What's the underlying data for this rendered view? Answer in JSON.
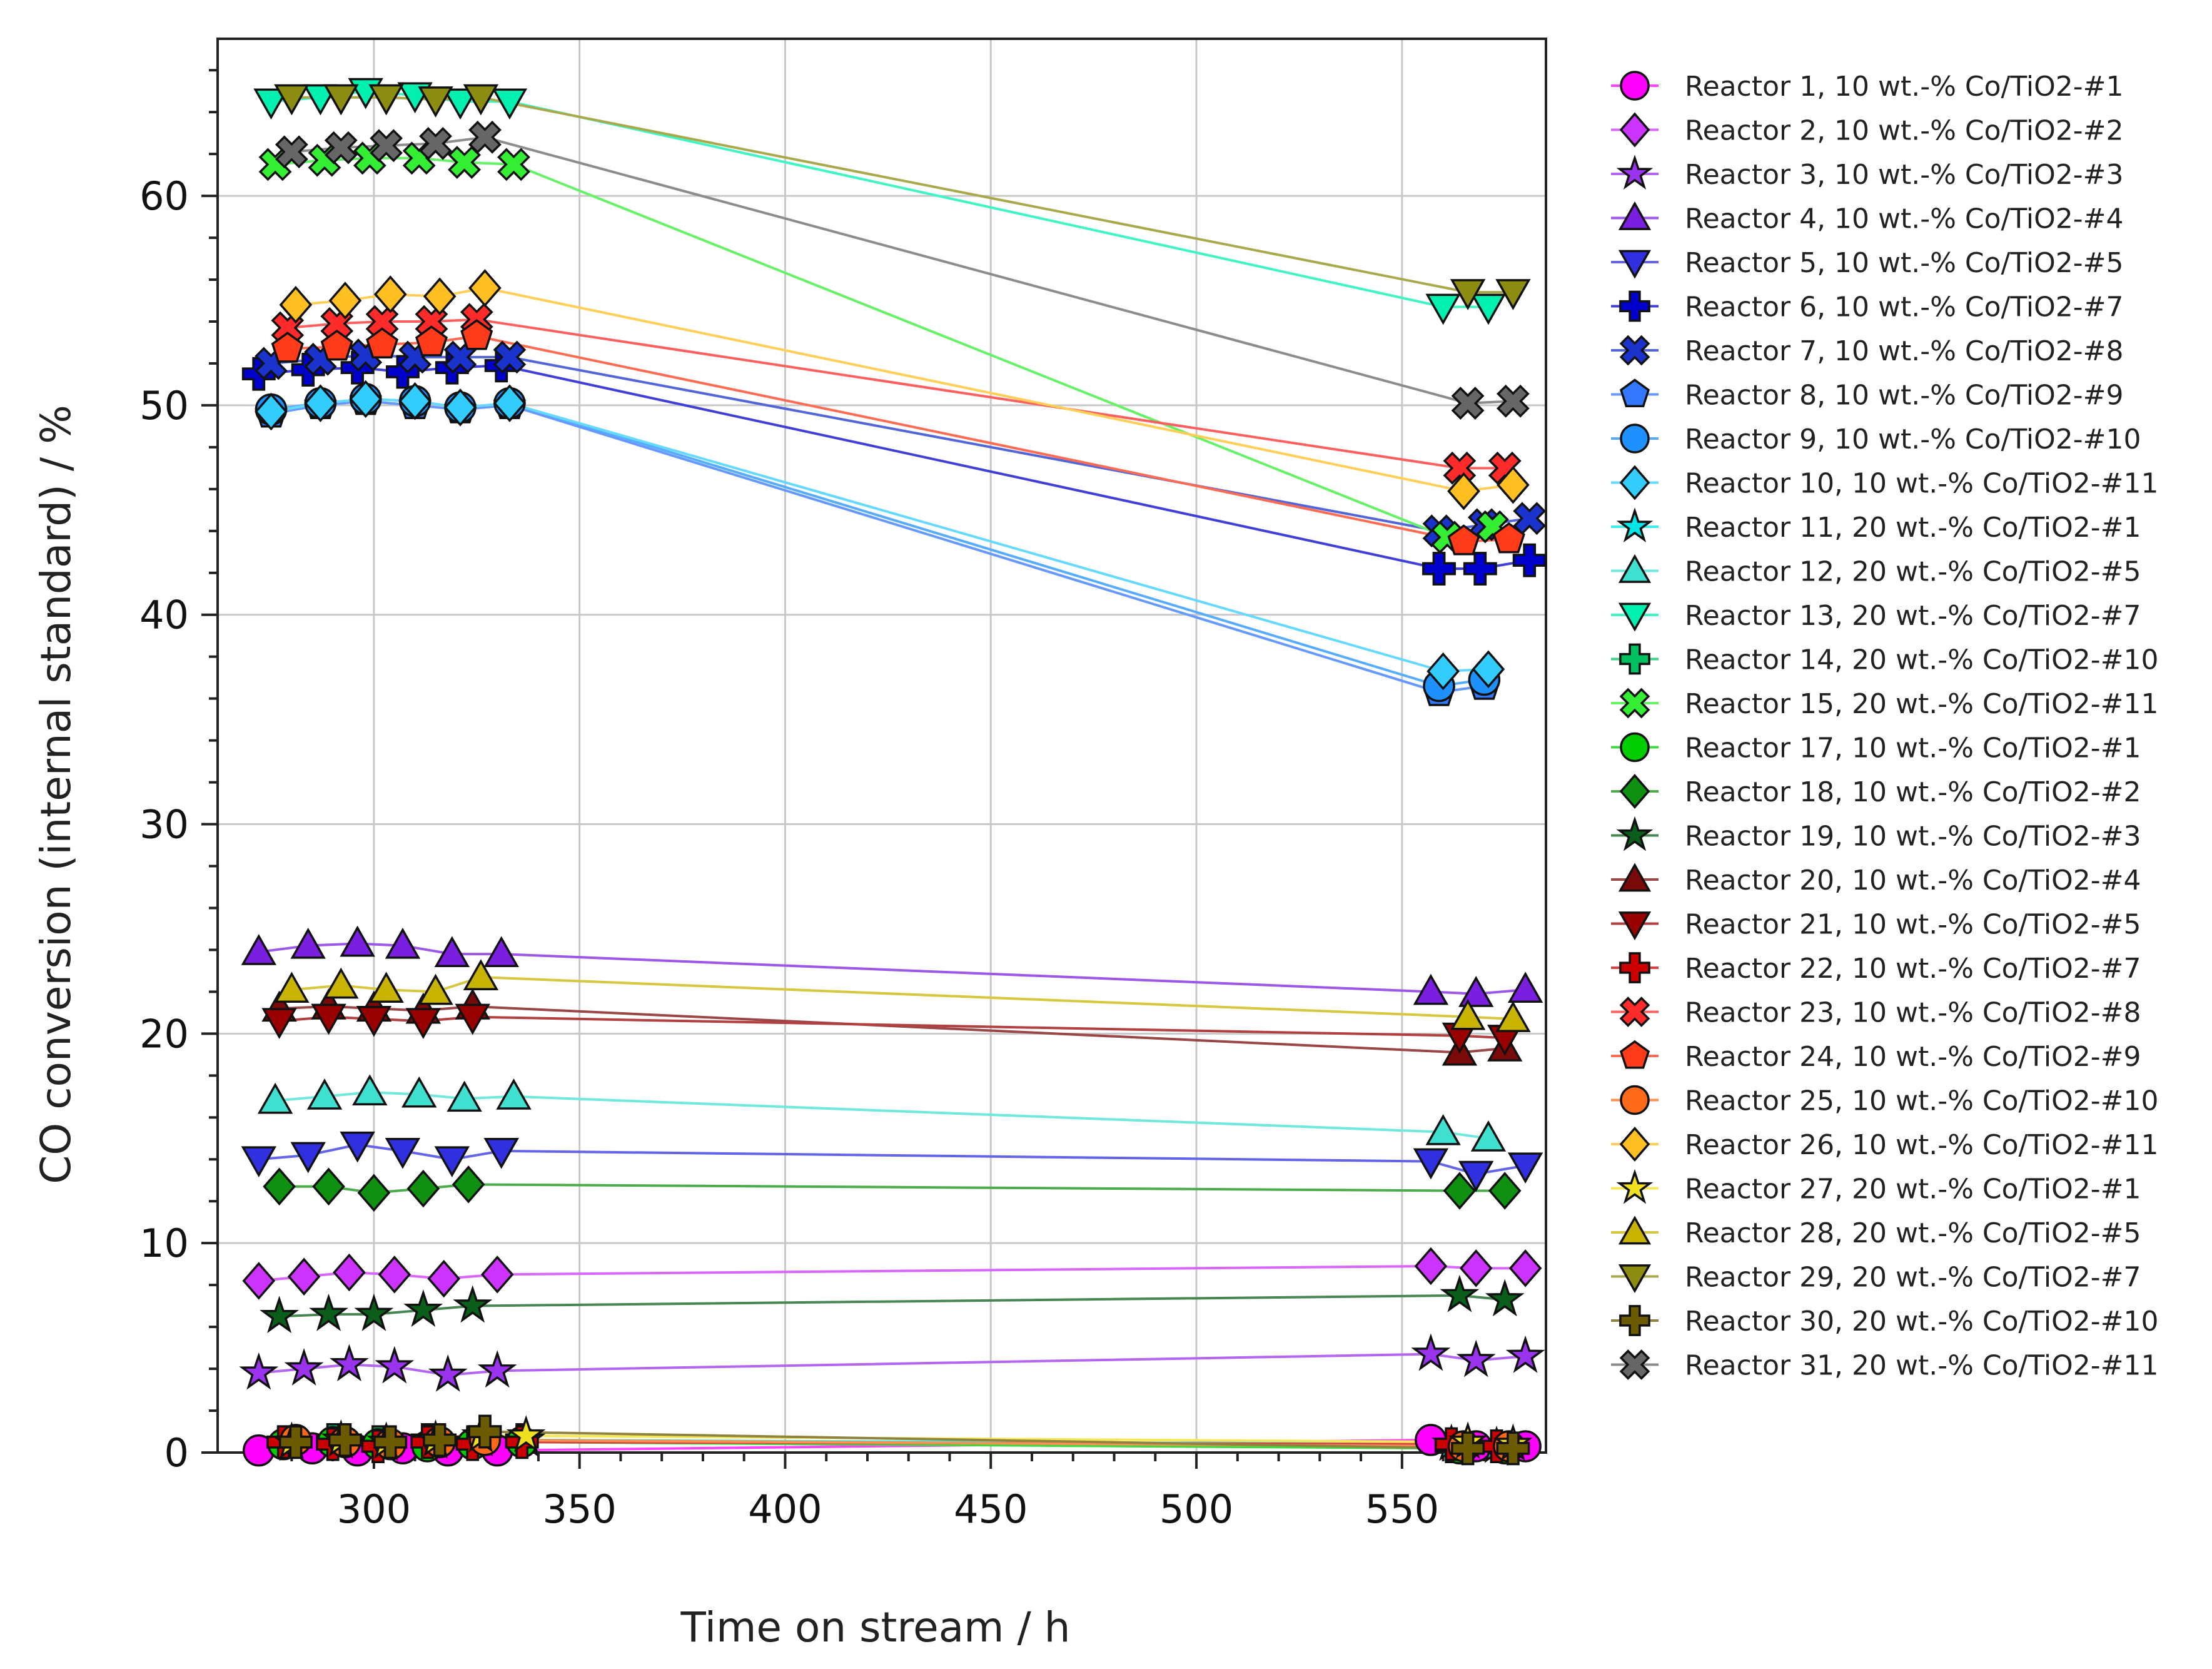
{
  "chart_data": {
    "type": "line",
    "title": "",
    "xlabel": "Time on stream / h",
    "ylabel": "CO conversion (internal standard) / %",
    "xlim": [
      262,
      585
    ],
    "ylim": [
      0,
      67.5
    ],
    "xticks": [
      300,
      350,
      400,
      450,
      500,
      550
    ],
    "yticks": [
      0,
      10,
      20,
      30,
      40,
      50,
      60
    ],
    "grid": true,
    "legend_position": "right",
    "series": [
      {
        "name": "Reactor 1, 10 wt.-% Co/TiO2-#1",
        "color": "#ff00ff",
        "marker": "circle",
        "points": [
          [
            272,
            0.1
          ],
          [
            285,
            0.2
          ],
          [
            296,
            0.1
          ],
          [
            307,
            0.2
          ],
          [
            318,
            0.1
          ],
          [
            330,
            0.1
          ],
          [
            557,
            0.6
          ],
          [
            568,
            0.3
          ],
          [
            580,
            0.3
          ]
        ]
      },
      {
        "name": "Reactor 2, 10 wt.-% Co/TiO2-#2",
        "color": "#cc33ff",
        "marker": "diamond",
        "points": [
          [
            272,
            8.2
          ],
          [
            283,
            8.4
          ],
          [
            294,
            8.6
          ],
          [
            305,
            8.5
          ],
          [
            317,
            8.3
          ],
          [
            330,
            8.5
          ],
          [
            557,
            8.9
          ],
          [
            568,
            8.8
          ],
          [
            580,
            8.8
          ]
        ]
      },
      {
        "name": "Reactor 3, 10 wt.-% Co/TiO2-#3",
        "color": "#9933ee",
        "marker": "star",
        "points": [
          [
            272,
            3.8
          ],
          [
            283,
            4.0
          ],
          [
            294,
            4.2
          ],
          [
            305,
            4.1
          ],
          [
            318,
            3.7
          ],
          [
            330,
            3.9
          ],
          [
            557,
            4.7
          ],
          [
            568,
            4.4
          ],
          [
            580,
            4.6
          ]
        ]
      },
      {
        "name": "Reactor 4, 10 wt.-% Co/TiO2-#4",
        "color": "#7a1fe0",
        "marker": "triangle-up",
        "points": [
          [
            272,
            23.9
          ],
          [
            284,
            24.2
          ],
          [
            296,
            24.3
          ],
          [
            307,
            24.2
          ],
          [
            319,
            23.8
          ],
          [
            331,
            23.8
          ],
          [
            557,
            22.0
          ],
          [
            568,
            21.9
          ],
          [
            580,
            22.1
          ]
        ]
      },
      {
        "name": "Reactor 5, 10 wt.-% Co/TiO2-#5",
        "color": "#3030e0",
        "marker": "triangle-down",
        "points": [
          [
            272,
            14.0
          ],
          [
            284,
            14.2
          ],
          [
            296,
            14.7
          ],
          [
            307,
            14.4
          ],
          [
            319,
            14.0
          ],
          [
            331,
            14.4
          ],
          [
            557,
            13.9
          ],
          [
            568,
            13.3
          ],
          [
            580,
            13.7
          ]
        ]
      },
      {
        "name": "Reactor 6, 10 wt.-% Co/TiO2-#7",
        "color": "#0000cc",
        "marker": "plus",
        "points": [
          [
            272,
            51.5
          ],
          [
            284,
            51.7
          ],
          [
            296,
            51.8
          ],
          [
            307,
            51.6
          ],
          [
            319,
            51.8
          ],
          [
            331,
            51.9
          ],
          [
            559,
            42.2
          ],
          [
            569,
            42.2
          ],
          [
            581,
            42.6
          ]
        ]
      },
      {
        "name": "Reactor 7, 10 wt.-% Co/TiO2-#8",
        "color": "#1a33cc",
        "marker": "x",
        "points": [
          [
            275,
            52.0
          ],
          [
            287,
            52.2
          ],
          [
            298,
            52.4
          ],
          [
            310,
            52.3
          ],
          [
            321,
            52.3
          ],
          [
            333,
            52.3
          ],
          [
            559,
            44.0
          ],
          [
            570,
            44.3
          ],
          [
            581,
            44.6
          ]
        ]
      },
      {
        "name": "Reactor 8, 10 wt.-% Co/TiO2-#9",
        "color": "#3377ff",
        "marker": "pentagon",
        "points": [
          [
            275,
            49.6
          ],
          [
            287,
            50.0
          ],
          [
            298,
            50.2
          ],
          [
            310,
            50.0
          ],
          [
            321,
            49.8
          ],
          [
            333,
            50.0
          ],
          [
            559,
            36.3
          ],
          [
            570,
            36.6
          ]
        ]
      },
      {
        "name": "Reactor 9, 10 wt.-% Co/TiO2-#10",
        "color": "#1e90ff",
        "marker": "circle",
        "points": [
          [
            275,
            49.8
          ],
          [
            287,
            50.1
          ],
          [
            298,
            50.3
          ],
          [
            310,
            50.2
          ],
          [
            321,
            49.9
          ],
          [
            333,
            50.1
          ],
          [
            559,
            36.6
          ],
          [
            570,
            36.9
          ]
        ]
      },
      {
        "name": "Reactor 10, 10 wt.-% Co/TiO2-#11",
        "color": "#33ccff",
        "marker": "diamond",
        "points": [
          [
            275,
            49.7
          ],
          [
            287,
            50.1
          ],
          [
            298,
            50.3
          ],
          [
            310,
            50.2
          ],
          [
            321,
            49.9
          ],
          [
            333,
            50.1
          ],
          [
            560,
            37.3
          ],
          [
            571,
            37.4
          ]
        ]
      },
      {
        "name": "Reactor 11, 20 wt.-% Co/TiO2-#1",
        "color": "#00e5e5",
        "marker": "star",
        "points": [
          [
            280,
            0.4
          ],
          [
            292,
            0.5
          ],
          [
            303,
            0.4
          ],
          [
            315,
            0.5
          ],
          [
            326,
            0.6
          ],
          [
            337,
            0.6
          ],
          [
            562,
            0.4
          ],
          [
            573,
            0.3
          ]
        ]
      },
      {
        "name": "Reactor 12, 20 wt.-% Co/TiO2-#5",
        "color": "#40e0d0",
        "marker": "triangle-up",
        "points": [
          [
            276,
            16.8
          ],
          [
            288,
            17.0
          ],
          [
            299,
            17.2
          ],
          [
            311,
            17.1
          ],
          [
            322,
            16.9
          ],
          [
            334,
            17.0
          ],
          [
            560,
            15.3
          ],
          [
            571,
            15.0
          ]
        ]
      },
      {
        "name": "Reactor 13, 20 wt.-% Co/TiO2-#7",
        "color": "#00f0b0",
        "marker": "triangle-down",
        "points": [
          [
            275,
            64.5
          ],
          [
            287,
            64.7
          ],
          [
            298,
            65.0
          ],
          [
            310,
            64.8
          ],
          [
            321,
            64.5
          ],
          [
            333,
            64.5
          ],
          [
            560,
            54.7
          ],
          [
            571,
            54.7
          ]
        ]
      },
      {
        "name": "Reactor 14, 20 wt.-% Co/TiO2-#10",
        "color": "#00c060",
        "marker": "plus",
        "points": [
          [
            278,
            0.5
          ],
          [
            290,
            0.6
          ],
          [
            301,
            0.5
          ],
          [
            313,
            0.6
          ],
          [
            324,
            0.5
          ],
          [
            336,
            0.6
          ],
          [
            562,
            0.3
          ],
          [
            573,
            0.3
          ]
        ]
      },
      {
        "name": "Reactor 15, 20 wt.-% Co/TiO2-#11",
        "color": "#33ee33",
        "marker": "x",
        "points": [
          [
            276,
            61.5
          ],
          [
            288,
            61.7
          ],
          [
            299,
            61.8
          ],
          [
            311,
            61.8
          ],
          [
            322,
            61.6
          ],
          [
            334,
            61.5
          ],
          [
            561,
            43.7
          ],
          [
            572,
            44.2
          ]
        ]
      },
      {
        "name": "Reactor 17, 10 wt.-% Co/TiO2-#1",
        "color": "#00cc00",
        "marker": "circle",
        "points": [
          [
            278,
            0.4
          ],
          [
            290,
            0.5
          ],
          [
            301,
            0.4
          ],
          [
            313,
            0.3
          ],
          [
            324,
            0.4
          ],
          [
            336,
            0.5
          ],
          [
            564,
            0.2
          ],
          [
            575,
            0.2
          ]
        ]
      },
      {
        "name": "Reactor 18, 10 wt.-% Co/TiO2-#2",
        "color": "#109010",
        "marker": "diamond",
        "points": [
          [
            277,
            12.7
          ],
          [
            289,
            12.7
          ],
          [
            300,
            12.4
          ],
          [
            312,
            12.6
          ],
          [
            323,
            12.8
          ],
          [
            564,
            12.5
          ],
          [
            575,
            12.5
          ]
        ]
      },
      {
        "name": "Reactor 19, 10 wt.-% Co/TiO2-#3",
        "color": "#0b5e1a",
        "marker": "star",
        "points": [
          [
            277,
            6.5
          ],
          [
            289,
            6.6
          ],
          [
            300,
            6.6
          ],
          [
            312,
            6.8
          ],
          [
            324,
            7.0
          ],
          [
            564,
            7.5
          ],
          [
            575,
            7.3
          ]
        ]
      },
      {
        "name": "Reactor 20, 10 wt.-% Co/TiO2-#4",
        "color": "#7a0a0a",
        "marker": "triangle-up",
        "points": [
          [
            277,
            21.2
          ],
          [
            289,
            21.3
          ],
          [
            300,
            21.2
          ],
          [
            312,
            21.1
          ],
          [
            324,
            21.3
          ],
          [
            564,
            19.1
          ],
          [
            575,
            19.3
          ]
        ]
      },
      {
        "name": "Reactor 21, 10 wt.-% Co/TiO2-#5",
        "color": "#990000",
        "marker": "triangle-down",
        "points": [
          [
            277,
            20.6
          ],
          [
            289,
            20.8
          ],
          [
            300,
            20.7
          ],
          [
            312,
            20.6
          ],
          [
            324,
            20.8
          ],
          [
            564,
            19.9
          ],
          [
            575,
            19.8
          ]
        ]
      },
      {
        "name": "Reactor 22, 10 wt.-% Co/TiO2-#7",
        "color": "#cc0000",
        "marker": "plus",
        "points": [
          [
            278,
            0.5
          ],
          [
            290,
            0.4
          ],
          [
            301,
            0.3
          ],
          [
            313,
            0.5
          ],
          [
            324,
            0.4
          ],
          [
            336,
            0.5
          ],
          [
            562,
            0.4
          ],
          [
            573,
            0.3
          ]
        ]
      },
      {
        "name": "Reactor 23, 10 wt.-% Co/TiO2-#8",
        "color": "#ff2a2a",
        "marker": "x",
        "points": [
          [
            279,
            53.7
          ],
          [
            291,
            53.9
          ],
          [
            302,
            54.0
          ],
          [
            314,
            54.0
          ],
          [
            325,
            54.1
          ],
          [
            564,
            47.0
          ],
          [
            575,
            47.0
          ]
        ]
      },
      {
        "name": "Reactor 24, 10 wt.-% Co/TiO2-#9",
        "color": "#ff3b1a",
        "marker": "pentagon",
        "points": [
          [
            279,
            52.7
          ],
          [
            291,
            52.8
          ],
          [
            302,
            52.9
          ],
          [
            314,
            53.0
          ],
          [
            325,
            53.3
          ],
          [
            565,
            43.5
          ],
          [
            576,
            43.6
          ]
        ]
      },
      {
        "name": "Reactor 25, 10 wt.-% Co/TiO2-#10",
        "color": "#ff6a1a",
        "marker": "circle",
        "points": [
          [
            281,
            0.6
          ],
          [
            293,
            0.5
          ],
          [
            304,
            0.4
          ],
          [
            316,
            0.5
          ],
          [
            327,
            0.6
          ],
          [
            565,
            0.3
          ],
          [
            576,
            0.3
          ]
        ]
      },
      {
        "name": "Reactor 26, 10 wt.-% Co/TiO2-#11",
        "color": "#ffbf20",
        "marker": "diamond",
        "points": [
          [
            281,
            54.8
          ],
          [
            293,
            55.0
          ],
          [
            304,
            55.3
          ],
          [
            316,
            55.2
          ],
          [
            327,
            55.6
          ],
          [
            565,
            45.9
          ],
          [
            577,
            46.2
          ]
        ]
      },
      {
        "name": "Reactor 27, 20 wt.-% Co/TiO2-#1",
        "color": "#f0e020",
        "marker": "star",
        "points": [
          [
            280,
            0.5
          ],
          [
            292,
            0.6
          ],
          [
            303,
            0.5
          ],
          [
            315,
            0.6
          ],
          [
            326,
            0.8
          ],
          [
            337,
            0.8
          ],
          [
            566,
            0.5
          ],
          [
            577,
            0.4
          ]
        ]
      },
      {
        "name": "Reactor 28, 20 wt.-% Co/TiO2-#5",
        "color": "#c8b400",
        "marker": "triangle-up",
        "points": [
          [
            280,
            22.1
          ],
          [
            292,
            22.3
          ],
          [
            303,
            22.1
          ],
          [
            315,
            22.0
          ],
          [
            326,
            22.7
          ],
          [
            566,
            20.8
          ],
          [
            577,
            20.7
          ]
        ]
      },
      {
        "name": "Reactor 29, 20 wt.-% Co/TiO2-#7",
        "color": "#8c8c10",
        "marker": "triangle-down",
        "points": [
          [
            280,
            64.7
          ],
          [
            292,
            64.7
          ],
          [
            303,
            64.7
          ],
          [
            315,
            64.6
          ],
          [
            326,
            64.7
          ],
          [
            566,
            55.4
          ],
          [
            577,
            55.4
          ]
        ]
      },
      {
        "name": "Reactor 30, 20 wt.-% Co/TiO2-#10",
        "color": "#6b5a00",
        "marker": "plus",
        "points": [
          [
            281,
            0.5
          ],
          [
            293,
            0.6
          ],
          [
            304,
            0.5
          ],
          [
            316,
            0.6
          ],
          [
            327,
            1.0
          ],
          [
            566,
            0.2
          ],
          [
            577,
            0.2
          ]
        ]
      },
      {
        "name": "Reactor 31, 20 wt.-% Co/TiO2-#11",
        "color": "#666666",
        "marker": "x",
        "points": [
          [
            280,
            62.1
          ],
          [
            292,
            62.3
          ],
          [
            303,
            62.4
          ],
          [
            315,
            62.5
          ],
          [
            327,
            62.8
          ],
          [
            566,
            50.1
          ],
          [
            577,
            50.2
          ]
        ]
      }
    ]
  }
}
